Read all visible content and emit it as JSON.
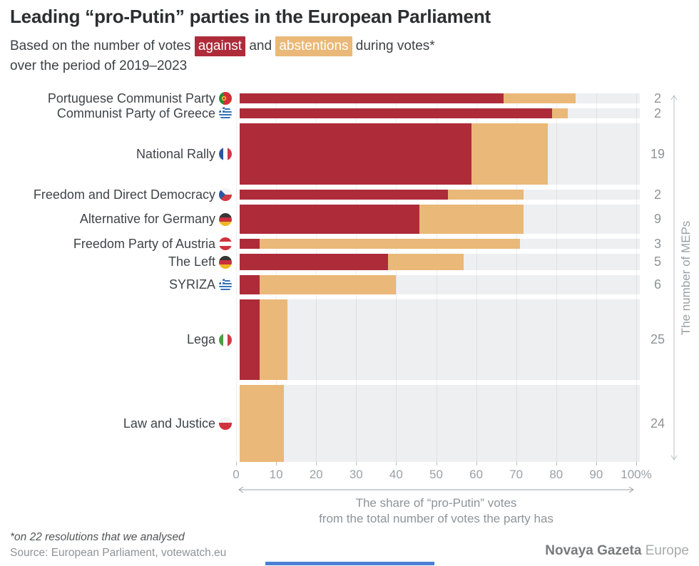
{
  "header": {
    "title": "Leading “pro-Putin” parties in the European Parliament",
    "subtitle_prefix": "Based on the number of votes",
    "chip_against": "against",
    "subtitle_mid": "and",
    "chip_abstentions": "abstentions",
    "subtitle_suffix": "during votes*",
    "subtitle_line2": "over the period of 2019–2023"
  },
  "colors": {
    "against": "#AE2B3A",
    "abstentions": "#EAB878",
    "track": "#EDEFF1",
    "accent_blue": "#4B7FD6"
  },
  "chart_data": {
    "type": "bar",
    "orientation": "horizontal",
    "stacked": true,
    "unit": "percent",
    "xlim": [
      0,
      100
    ],
    "x_tick_labels": [
      "0",
      "10",
      "20",
      "30",
      "40",
      "50",
      "60",
      "70",
      "80",
      "90",
      "100%"
    ],
    "xlabel_line1": "The share of “pro-Putin” votes",
    "xlabel_line2": "from the total number of votes the party has",
    "right_axis_label": "The number of MEPs",
    "series_names": [
      "against",
      "abstentions"
    ],
    "bar_thickness_note": "bar height proportional to number of MEPs",
    "rows": [
      {
        "label": "Portuguese Communist Party",
        "flag": "portugal",
        "against": 66,
        "abstentions": 18,
        "meps": 2
      },
      {
        "label": "Communist Party of Greece",
        "flag": "greece",
        "against": 78,
        "abstentions": 4,
        "meps": 2
      },
      {
        "label": "National Rally",
        "flag": "france",
        "against": 58,
        "abstentions": 19,
        "meps": 19
      },
      {
        "label": "Freedom and Direct Democracy",
        "flag": "czechia",
        "against": 52,
        "abstentions": 19,
        "meps": 2
      },
      {
        "label": "Alternative for Germany",
        "flag": "germany",
        "against": 45,
        "abstentions": 26,
        "meps": 9
      },
      {
        "label": "Freedom Party of Austria",
        "flag": "austria",
        "against": 5,
        "abstentions": 65,
        "meps": 3
      },
      {
        "label": "The Left",
        "flag": "germany",
        "against": 37,
        "abstentions": 19,
        "meps": 5
      },
      {
        "label": "SYRIZA",
        "flag": "greece",
        "against": 5,
        "abstentions": 34,
        "meps": 6
      },
      {
        "label": "Lega",
        "flag": "italy",
        "against": 5,
        "abstentions": 7,
        "meps": 25
      },
      {
        "label": "Law and Justice",
        "flag": "poland",
        "against": 0,
        "abstentions": 11,
        "meps": 24
      }
    ]
  },
  "footer": {
    "footnote": "*on 22 resolutions that we analysed",
    "source": "Source: European Parliament, votewatch.eu",
    "brand_bold": "Novaya Gazeta",
    "brand_light": " Europe"
  }
}
